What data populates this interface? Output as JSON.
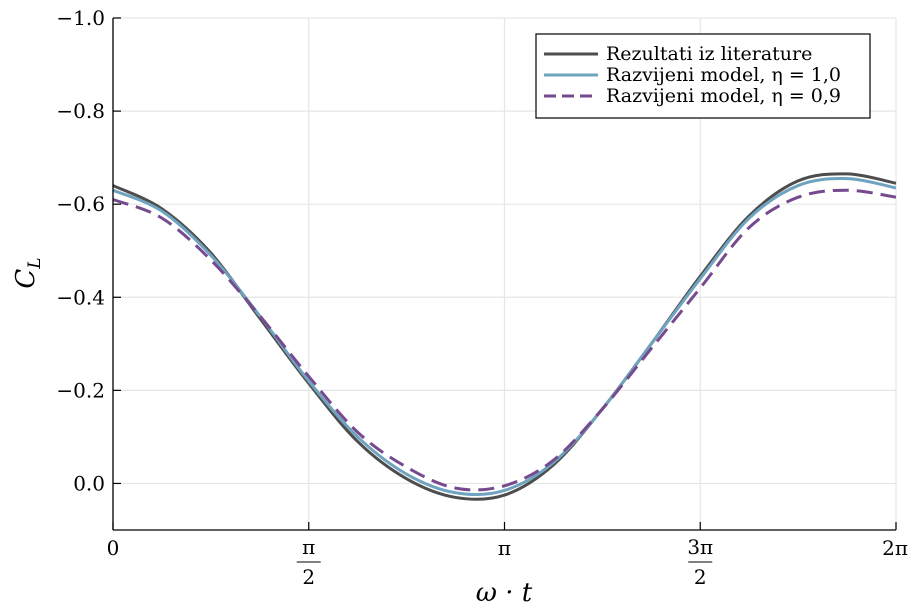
{
  "chart_data": {
    "type": "line",
    "xlabel": "ω · t",
    "ylabel": "C_L",
    "xlim": [
      0,
      6.283185
    ],
    "ylim": [
      0.1,
      -1.0
    ],
    "y_axis_inverted": true,
    "grid": true,
    "legend_position": "top-right",
    "x_ticks": [
      {
        "value": 0,
        "label": "0"
      },
      {
        "value": 1.570796,
        "label": "π/2",
        "num": "π",
        "den": "2"
      },
      {
        "value": 3.141593,
        "label": "π"
      },
      {
        "value": 4.712389,
        "label": "3π/2",
        "num": "3π",
        "den": "2"
      },
      {
        "value": 6.283185,
        "label": "2π"
      }
    ],
    "y_ticks": [
      {
        "value": -1.0,
        "label": "−1.0"
      },
      {
        "value": -0.8,
        "label": "−0.8"
      },
      {
        "value": -0.6,
        "label": "−0.6"
      },
      {
        "value": -0.4,
        "label": "−0.4"
      },
      {
        "value": -0.2,
        "label": "−0.2"
      },
      {
        "value": 0.0,
        "label": "0.0"
      }
    ],
    "series": [
      {
        "name": "Rezultati iz literature",
        "color": "#4d4d4d",
        "dash": "solid",
        "x": [
          0,
          0.3927,
          0.7854,
          1.1781,
          1.5708,
          1.9635,
          2.3562,
          2.7489,
          3.1416,
          3.5343,
          3.927,
          4.3197,
          4.7124,
          5.1051,
          5.4978,
          5.8905,
          6.2832
        ],
        "y": [
          -0.64,
          -0.59,
          -0.495,
          -0.355,
          -0.215,
          -0.09,
          -0.01,
          0.03,
          0.025,
          -0.04,
          -0.16,
          -0.3,
          -0.445,
          -0.575,
          -0.65,
          -0.665,
          -0.645
        ]
      },
      {
        "name": "Razvijeni model, η = 1,0",
        "color": "#6fa3bf",
        "dash": "solid",
        "x": [
          0,
          0.3927,
          0.7854,
          1.1781,
          1.5708,
          1.9635,
          2.3562,
          2.7489,
          3.1416,
          3.5343,
          3.927,
          4.3197,
          4.7124,
          5.1051,
          5.4978,
          5.8905,
          6.2832
        ],
        "y": [
          -0.63,
          -0.585,
          -0.49,
          -0.36,
          -0.22,
          -0.1,
          -0.02,
          0.02,
          0.015,
          -0.045,
          -0.16,
          -0.3,
          -0.44,
          -0.57,
          -0.64,
          -0.655,
          -0.635
        ]
      },
      {
        "name": "Razvijeni model, η = 0,9",
        "color": "#764a8f",
        "dash": "dashed",
        "x": [
          0,
          0.3927,
          0.7854,
          1.1781,
          1.5708,
          1.9635,
          2.3562,
          2.7489,
          3.1416,
          3.5343,
          3.927,
          4.3197,
          4.7124,
          5.1051,
          5.4978,
          5.8905,
          6.2832
        ],
        "y": [
          -0.61,
          -0.57,
          -0.48,
          -0.36,
          -0.23,
          -0.11,
          -0.035,
          0.01,
          0.005,
          -0.05,
          -0.16,
          -0.29,
          -0.42,
          -0.55,
          -0.615,
          -0.63,
          -0.615
        ]
      }
    ]
  }
}
